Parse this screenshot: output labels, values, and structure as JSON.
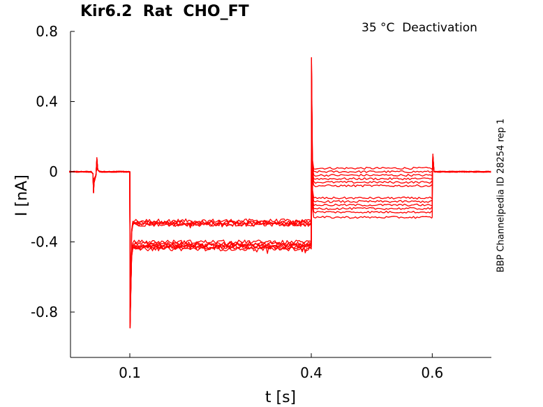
{
  "header": {
    "title": "Kir6.2  Rat  CHO_FT",
    "subtitle": "35 °C  Deactivation",
    "side_label": "BBP Channelpedia ID 28254 rep 1"
  },
  "colors": {
    "trace": "#ff0000",
    "axis": "#000000"
  },
  "chart_data": {
    "type": "line",
    "xlabel": "t [s]",
    "ylabel": "I [nA]",
    "xlim": [
      0.0,
      0.7
    ],
    "ylim": [
      -1.05,
      0.8
    ],
    "xticks": [
      0.1,
      0.4,
      0.6
    ],
    "xtick_labels": [
      "0.1",
      "0.4",
      "0.6"
    ],
    "yticks": [
      0.8,
      0.4,
      0,
      -0.4,
      -0.8
    ],
    "ytick_labels": [
      "0.8",
      "0.4",
      "0",
      "-0.4",
      "-0.8"
    ],
    "grid": false,
    "protocol": {
      "baseline_current": 0.0,
      "prepulse_start": 0.1,
      "test_start": 0.4,
      "test_end": 0.6,
      "capacitive_peak_at_0_1": -0.89,
      "capacitive_peak_at_0_4": 0.65,
      "artifact_at_0_04": {
        "min": -0.12,
        "max": 0.08
      },
      "artifact_at_0_6": 0.1
    },
    "series": [
      {
        "prepulse": -0.28,
        "test": 0.02
      },
      {
        "prepulse": -0.29,
        "test": 0.0
      },
      {
        "prepulse": -0.3,
        "test": -0.02
      },
      {
        "prepulse": -0.29,
        "test": -0.04
      },
      {
        "prepulse": -0.3,
        "test": -0.06
      },
      {
        "prepulse": -0.41,
        "test": -0.08
      },
      {
        "prepulse": -0.4,
        "test": -0.15
      },
      {
        "prepulse": -0.42,
        "test": -0.17
      },
      {
        "prepulse": -0.43,
        "test": -0.19
      },
      {
        "prepulse": -0.42,
        "test": -0.21
      },
      {
        "prepulse": -0.43,
        "test": -0.23
      },
      {
        "prepulse": -0.44,
        "test": -0.26
      }
    ]
  }
}
